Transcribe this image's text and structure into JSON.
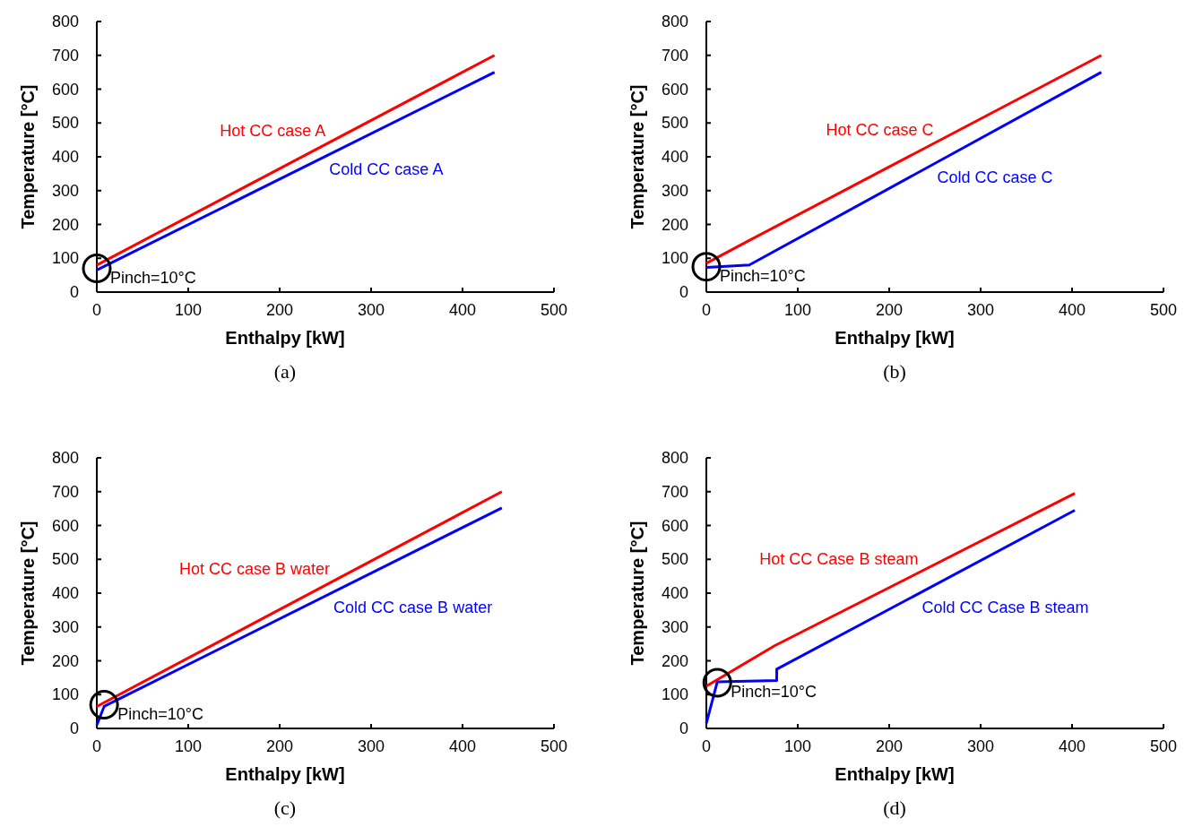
{
  "chart_data": [
    {
      "type": "line",
      "xlabel": "Enthalpy [kW]",
      "ylabel": "Temperature [°C]",
      "xlim": [
        0,
        500
      ],
      "xticks": [
        0,
        100,
        200,
        300,
        400,
        500
      ],
      "ylim": [
        0,
        800
      ],
      "yticks": [
        0,
        100,
        200,
        300,
        400,
        500,
        600,
        700,
        800
      ],
      "series": [
        {
          "name": "Hot CC case A",
          "color": "#ff0000",
          "x": [
            0,
            435
          ],
          "values": [
            80,
            700
          ]
        },
        {
          "name": "Cold CC case A",
          "color": "#0000ff",
          "x": [
            0,
            435
          ],
          "values": [
            65,
            650
          ]
        }
      ],
      "annotations": [
        {
          "text": "Pinch=10°C",
          "x": 0,
          "y": 70
        },
        "(a)"
      ]
    },
    {
      "type": "line",
      "xlabel": "Enthalpy [kW]",
      "ylabel": "Temperature [°C]",
      "xlim": [
        0,
        500
      ],
      "xticks": [
        0,
        100,
        200,
        300,
        400,
        500
      ],
      "ylim": [
        0,
        800
      ],
      "yticks": [
        0,
        100,
        200,
        300,
        400,
        500,
        600,
        700,
        800
      ],
      "series": [
        {
          "name": "Hot CC case C",
          "color": "#ff0000",
          "x": [
            0,
            45,
            432
          ],
          "values": [
            85,
            150,
            700
          ]
        },
        {
          "name": "Cold CC case C",
          "color": "#0000ff",
          "x": [
            0,
            47,
            432
          ],
          "values": [
            73,
            80,
            650
          ]
        }
      ],
      "annotations": [
        {
          "text": "Pinch=10°C",
          "x": 0,
          "y": 75
        },
        "(b)"
      ]
    },
    {
      "type": "line",
      "xlabel": "Enthalpy [kW]",
      "ylabel": "Temperature [°C]",
      "xlim": [
        0,
        500
      ],
      "xticks": [
        0,
        100,
        200,
        300,
        400,
        500
      ],
      "ylim": [
        0,
        800
      ],
      "yticks": [
        0,
        100,
        200,
        300,
        400,
        500,
        600,
        700,
        800
      ],
      "series": [
        {
          "name": "Hot CC case B water",
          "color": "#ff0000",
          "x": [
            0,
            443
          ],
          "values": [
            65,
            700
          ]
        },
        {
          "name": "Cold CC case B water",
          "color": "#0000ff",
          "x": [
            0,
            8,
            443
          ],
          "values": [
            10,
            65,
            652
          ]
        }
      ],
      "annotations": [
        {
          "text": "Pinch=10°C",
          "x": 8,
          "y": 70
        },
        "(c)"
      ]
    },
    {
      "type": "line",
      "xlabel": "Enthalpy [kW]",
      "ylabel": "Temperature [°C]",
      "xlim": [
        0,
        500
      ],
      "xticks": [
        0,
        100,
        200,
        300,
        400,
        500
      ],
      "ylim": [
        0,
        800
      ],
      "yticks": [
        0,
        100,
        200,
        300,
        400,
        500,
        600,
        700,
        800
      ],
      "series": [
        {
          "name": "Hot CC Case B steam",
          "color": "#ff0000",
          "x": [
            0,
            75,
            403
          ],
          "values": [
            125,
            245,
            695
          ]
        },
        {
          "name": "Cold CC Case B steam",
          "color": "#0000ff",
          "x": [
            0,
            12,
            77,
            77,
            403
          ],
          "values": [
            15,
            138,
            142,
            175,
            645
          ]
        }
      ],
      "annotations": [
        {
          "text": "Pinch=10°C",
          "x": 12,
          "y": 135
        },
        "(d)"
      ]
    }
  ]
}
